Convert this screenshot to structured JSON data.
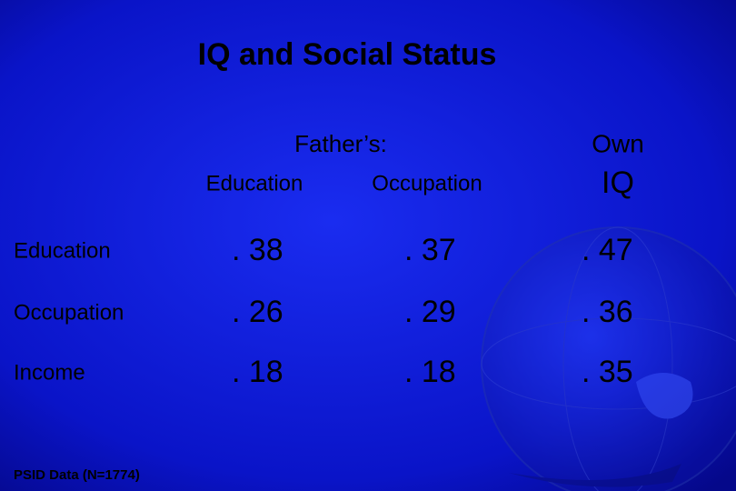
{
  "title": "IQ and Social Status",
  "table": {
    "group_header": "Father’s:",
    "own_header": "Own",
    "columns": [
      "Education",
      "Occupation",
      "IQ"
    ],
    "rows": [
      {
        "label": "Education",
        "cells": [
          ". 38",
          ". 37",
          ". 47"
        ]
      },
      {
        "label": "Occupation",
        "cells": [
          ". 26",
          ". 29",
          ". 36"
        ]
      },
      {
        "label": "Income",
        "cells": [
          ". 18",
          ". 18",
          ". 35"
        ]
      }
    ]
  },
  "footer": "PSID Data (N=1774)"
}
